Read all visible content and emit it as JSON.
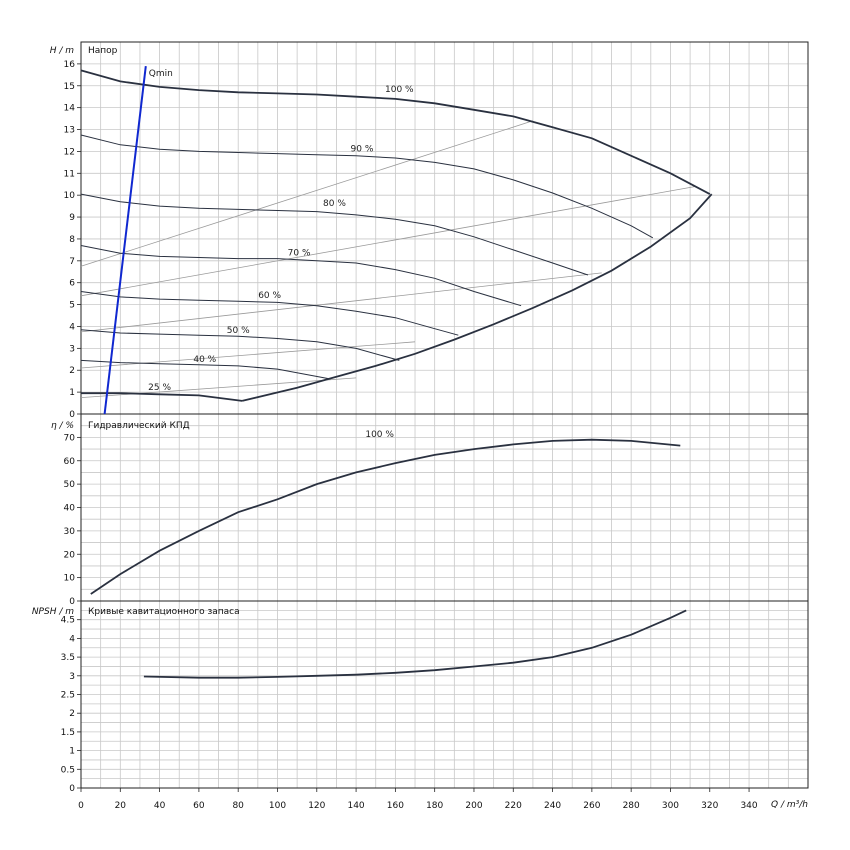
{
  "chart_data": [
    {
      "type": "line",
      "panel": "head",
      "title": "Напор",
      "ylabel": "H / m",
      "xlim": [
        0,
        370
      ],
      "ylim": [
        0,
        17
      ],
      "yticks": [
        0,
        1,
        2,
        3,
        4,
        5,
        6,
        7,
        8,
        9,
        10,
        11,
        12,
        13,
        14,
        15,
        16
      ],
      "series": [
        {
          "name": "100 %",
          "x": [
            0,
            20,
            40,
            60,
            80,
            100,
            120,
            140,
            160,
            180,
            200,
            220,
            240,
            260,
            280,
            300,
            320
          ],
          "y": [
            15.7,
            15.2,
            14.95,
            14.8,
            14.7,
            14.65,
            14.6,
            14.5,
            14.4,
            14.2,
            13.9,
            13.6,
            13.1,
            12.6,
            11.8,
            11.0,
            10.05
          ]
        },
        {
          "name": "90 %",
          "x": [
            0,
            20,
            40,
            60,
            80,
            100,
            120,
            140,
            160,
            180,
            200,
            220,
            240,
            260,
            280,
            291
          ],
          "y": [
            12.75,
            12.3,
            12.1,
            12.0,
            11.95,
            11.9,
            11.85,
            11.8,
            11.7,
            11.5,
            11.2,
            10.7,
            10.1,
            9.4,
            8.6,
            8.05
          ]
        },
        {
          "name": "80 %",
          "x": [
            0,
            20,
            40,
            60,
            80,
            100,
            120,
            140,
            160,
            180,
            200,
            220,
            240,
            258
          ],
          "y": [
            10.05,
            9.7,
            9.5,
            9.4,
            9.35,
            9.3,
            9.25,
            9.1,
            8.9,
            8.6,
            8.1,
            7.5,
            6.9,
            6.35
          ]
        },
        {
          "name": "70 %",
          "x": [
            0,
            20,
            40,
            60,
            80,
            100,
            120,
            140,
            160,
            180,
            200,
            224
          ],
          "y": [
            7.7,
            7.35,
            7.2,
            7.15,
            7.1,
            7.1,
            7.0,
            6.9,
            6.6,
            6.2,
            5.6,
            4.95
          ]
        },
        {
          "name": "60 %",
          "x": [
            0,
            20,
            40,
            60,
            80,
            100,
            120,
            140,
            160,
            180,
            192
          ],
          "y": [
            5.6,
            5.35,
            5.25,
            5.2,
            5.15,
            5.1,
            4.95,
            4.7,
            4.4,
            3.9,
            3.6
          ]
        },
        {
          "name": "50 %",
          "x": [
            0,
            20,
            40,
            60,
            80,
            100,
            120,
            140,
            162
          ],
          "y": [
            3.85,
            3.7,
            3.65,
            3.6,
            3.55,
            3.45,
            3.3,
            3.0,
            2.45
          ]
        },
        {
          "name": "40 %",
          "x": [
            0,
            20,
            40,
            60,
            80,
            100,
            127
          ],
          "y": [
            2.45,
            2.35,
            2.3,
            2.25,
            2.2,
            2.05,
            1.6
          ]
        },
        {
          "name": "25 %",
          "x": [
            0,
            20,
            40,
            60,
            82
          ],
          "y": [
            0.95,
            0.95,
            0.9,
            0.85,
            0.6
          ]
        },
        {
          "name": "Qmin",
          "x": [
            12,
            33
          ],
          "y": [
            0,
            15.9
          ]
        }
      ],
      "envelope": {
        "x": [
          82,
          110,
          130,
          150,
          170,
          190,
          210,
          230,
          250,
          270,
          290,
          310,
          321
        ],
        "y": [
          0.6,
          1.2,
          1.7,
          2.2,
          2.75,
          3.4,
          4.1,
          4.85,
          5.65,
          6.55,
          7.65,
          8.95,
          10.05
        ]
      },
      "system_curves": [
        {
          "x": [
            0,
            230
          ],
          "y": [
            6.75,
            13.4
          ]
        },
        {
          "x": [
            0,
            313
          ],
          "y": [
            5.4,
            10.4
          ]
        },
        {
          "x": [
            0,
            265
          ],
          "y": [
            3.75,
            6.45
          ]
        },
        {
          "x": [
            0,
            170
          ],
          "y": [
            2.1,
            3.3
          ]
        },
        {
          "x": [
            0,
            140
          ],
          "y": [
            0.75,
            1.65
          ]
        }
      ],
      "labels": [
        "100 %",
        "90 %",
        "80 %",
        "70 %",
        "60 %",
        "50 %",
        "40 %",
        "25 %",
        "Qmin"
      ]
    },
    {
      "type": "line",
      "panel": "efficiency",
      "title": "Гидравлический КПД",
      "ylabel": "η / %",
      "xlim": [
        0,
        370
      ],
      "ylim": [
        0,
        80
      ],
      "yticks": [
        0,
        10,
        20,
        30,
        40,
        50,
        60,
        70
      ],
      "series": [
        {
          "name": "100 %",
          "x": [
            5,
            20,
            40,
            60,
            80,
            100,
            120,
            140,
            160,
            180,
            200,
            220,
            240,
            260,
            280,
            305
          ],
          "y": [
            3,
            11.5,
            21.5,
            30,
            38,
            43.5,
            50,
            55,
            59,
            62.5,
            65,
            67,
            68.5,
            69,
            68.5,
            66.5
          ]
        }
      ]
    },
    {
      "type": "line",
      "panel": "npsh",
      "title": "Кривые кавитационного запаса",
      "ylabel": "NPSH / m",
      "xlabel": "Q / m³/h",
      "xlim": [
        0,
        370
      ],
      "ylim": [
        0,
        5
      ],
      "yticks": [
        0,
        0.5,
        1,
        1.5,
        2,
        2.5,
        3,
        3.5,
        4,
        4.5
      ],
      "xticks": [
        0,
        20,
        40,
        60,
        80,
        100,
        120,
        140,
        160,
        180,
        200,
        220,
        240,
        260,
        280,
        300,
        320,
        340
      ],
      "series": [
        {
          "name": "",
          "x": [
            32,
            60,
            80,
            100,
            120,
            140,
            160,
            180,
            200,
            220,
            240,
            260,
            280,
            300,
            308
          ],
          "y": [
            2.98,
            2.95,
            2.95,
            2.97,
            3.0,
            3.03,
            3.08,
            3.15,
            3.25,
            3.35,
            3.5,
            3.75,
            4.1,
            4.55,
            4.75
          ]
        }
      ]
    }
  ]
}
